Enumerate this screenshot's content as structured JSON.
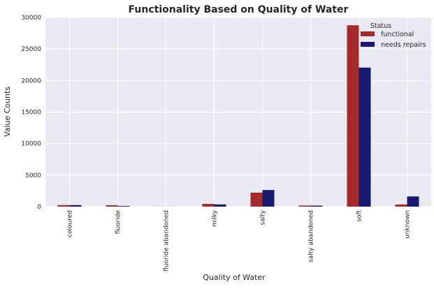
{
  "chart_data": {
    "type": "bar",
    "title": "Functionality Based on Quality of Water",
    "xlabel": "Quality of Water",
    "ylabel": "Value Counts",
    "categories": [
      "coloured",
      "fluoride",
      "fluoride abandoned",
      "milky",
      "salty",
      "salty abandoned",
      "soft",
      "unknown"
    ],
    "series": [
      {
        "name": "functional",
        "values": [
          246,
          217,
          12,
          438,
          2220,
          174,
          28760,
          339
        ],
        "color": "#a52a2a"
      },
      {
        "name": "needs repairs",
        "values": [
          244,
          98,
          5,
          351,
          2637,
          162,
          22050,
          1618
        ],
        "color": "#191970"
      }
    ],
    "ylim": [
      0,
      30000
    ],
    "yticks": [
      0,
      5000,
      10000,
      15000,
      20000,
      25000,
      30000
    ],
    "legend": {
      "title": "Status",
      "placement": "top-right"
    },
    "grid": true,
    "background": "#eaeaf2"
  }
}
